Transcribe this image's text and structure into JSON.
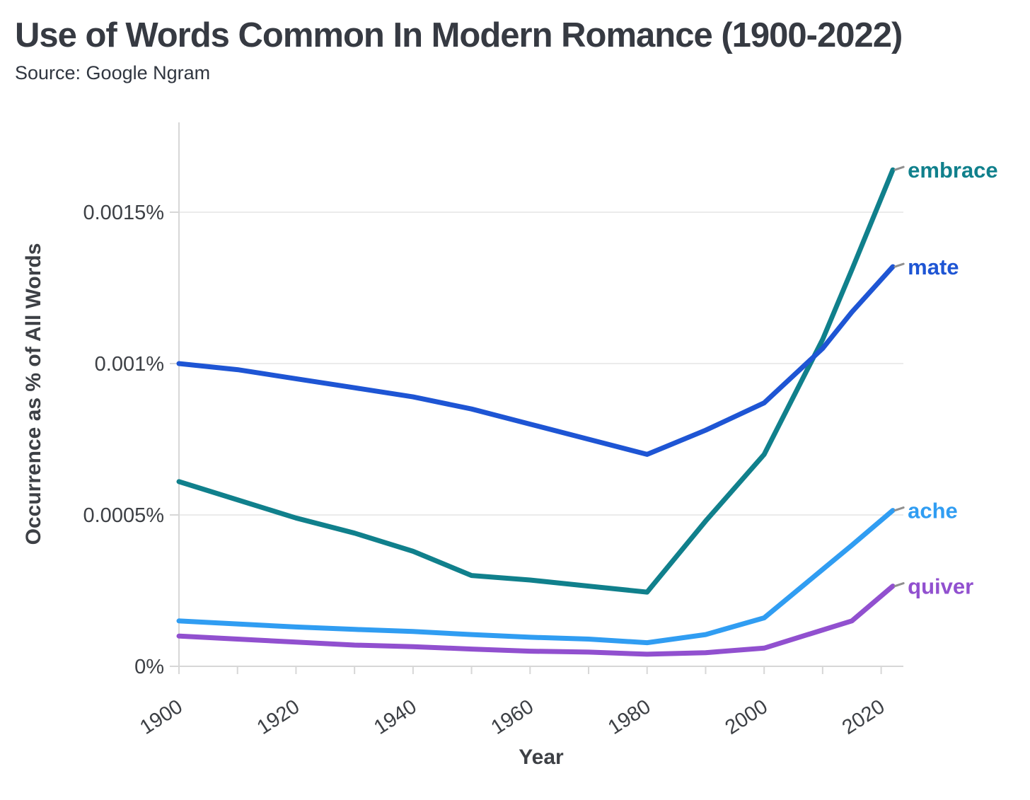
{
  "chart_data": {
    "type": "line",
    "title": "Use of Words Common In Modern Romance (1900-2022)",
    "source_label": "Source: Google Ngram",
    "xlabel": "Year",
    "ylabel": "Occurrence as % of All Words",
    "x_range": [
      1900,
      2022
    ],
    "x_labeled_ticks": [
      1900,
      1920,
      1940,
      1960,
      1980,
      2000,
      2020
    ],
    "x_minor_tick_step": 10,
    "y_ticks": [
      {
        "value": 0,
        "label": "0%"
      },
      {
        "value": 0.0005,
        "label": "0.0005%"
      },
      {
        "value": 0.001,
        "label": "0.001%"
      },
      {
        "value": 0.0015,
        "label": "0.0015%"
      }
    ],
    "y_top": 0.0018,
    "grid": "horizontal",
    "legend_position": "line-end-labels",
    "years": [
      1900,
      1910,
      1920,
      1930,
      1940,
      1950,
      1960,
      1970,
      1980,
      1990,
      2000,
      2010,
      2015,
      2022
    ],
    "series": [
      {
        "name": "embrace",
        "color": "#10808C",
        "values": [
          0.00061,
          0.00055,
          0.00049,
          0.00044,
          0.00038,
          0.0003,
          0.000285,
          0.000265,
          0.000245,
          0.00048,
          0.0007,
          0.00108,
          0.00131,
          0.00164
        ]
      },
      {
        "name": "mate",
        "color": "#1E55D4",
        "values": [
          0.001,
          0.00098,
          0.00095,
          0.00092,
          0.00089,
          0.00085,
          0.0008,
          0.00075,
          0.0007,
          0.00078,
          0.00087,
          0.00105,
          0.00117,
          0.00132
        ]
      },
      {
        "name": "ache",
        "color": "#309DF2",
        "values": [
          0.00015,
          0.00014,
          0.00013,
          0.000122,
          0.000115,
          0.000105,
          9.6e-05,
          9e-05,
          7.8e-05,
          0.000105,
          0.00016,
          0.00032,
          0.0004,
          0.000515
        ]
      },
      {
        "name": "quiver",
        "color": "#9150CF",
        "values": [
          0.0001,
          9e-05,
          8e-05,
          7e-05,
          6.5e-05,
          5.7e-05,
          5e-05,
          4.7e-05,
          4e-05,
          4.5e-05,
          6e-05,
          0.00012,
          0.00015,
          0.000265
        ]
      }
    ],
    "axis_color": "#d7d7d7",
    "gridline_color": "#ebebeb",
    "tick_text_color": "#3d4045"
  }
}
